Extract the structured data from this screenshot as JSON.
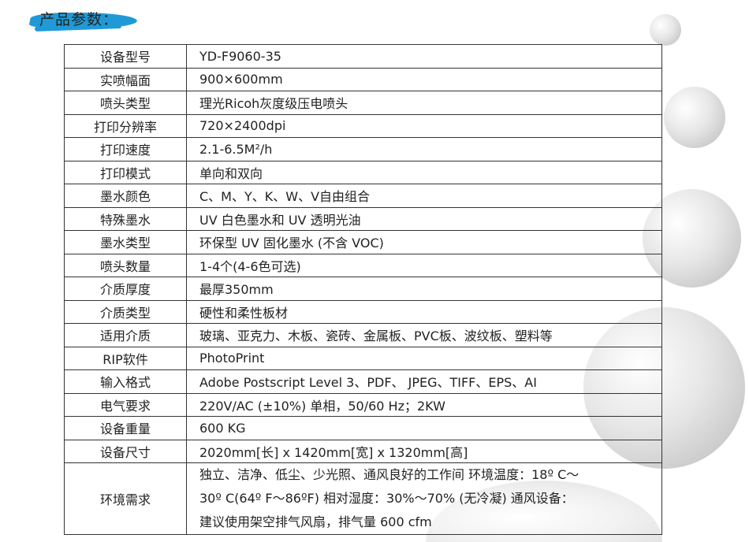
{
  "heading": "产品参数：",
  "colors": {
    "accent": "#1f9ad6",
    "border": "#333333"
  },
  "rows": [
    {
      "label": "设备型号",
      "value": "YD-F9060-35"
    },
    {
      "label": "实喷幅面",
      "value": "900×600mm"
    },
    {
      "label": "喷头类型",
      "value": "理光Ricoh灰度级压电喷头"
    },
    {
      "label": "打印分辨率",
      "value": "720×2400dpi"
    },
    {
      "label": "打印速度",
      "value": "2.1-6.5M²/h"
    },
    {
      "label": "打印模式",
      "value": "单向和双向"
    },
    {
      "label": "墨水颜色",
      "value": "C、M、Y、K、W、V自由组合"
    },
    {
      "label": "特殊墨水",
      "value": "UV 白色墨水和 UV 透明光油"
    },
    {
      "label": "墨水类型",
      "value": "环保型 UV 固化墨水 (不含 VOC)"
    },
    {
      "label": "喷头数量",
      "value": "1-4个(4-6色可选)"
    },
    {
      "label": "介质厚度",
      "value": "最厚350mm"
    },
    {
      "label": "介质类型",
      "value": "硬性和柔性板材"
    },
    {
      "label": "适用介质",
      "value": "玻璃、亚克力、木板、瓷砖、金属板、PVC板、波纹板、塑料等"
    },
    {
      "label": "RIP软件",
      "value": "PhotoPrint"
    },
    {
      "label": "输入格式",
      "value": "Adobe Postscript Level 3、PDF、 JPEG、TIFF、EPS、AI"
    },
    {
      "label": "电气要求",
      "value": "220V/AC (±10%) 单相，50/60 Hz；2KW"
    },
    {
      "label": "设备重量",
      "value": "600 KG"
    },
    {
      "label": "设备尺寸",
      "value": "2020mm[长] x 1420mm[宽] x 1320mm[高]"
    }
  ],
  "environment": {
    "label": "环境需求",
    "lines": [
      "独立、洁净、低尘、少光照、通风良好的工作间 环境温度：18º C～",
      "30º C(64º F～86ºF) 相对湿度：30%～70% (无冷凝) 通风设备：",
      "建议使用架空排气风扇，排气量 600 cfm"
    ]
  }
}
